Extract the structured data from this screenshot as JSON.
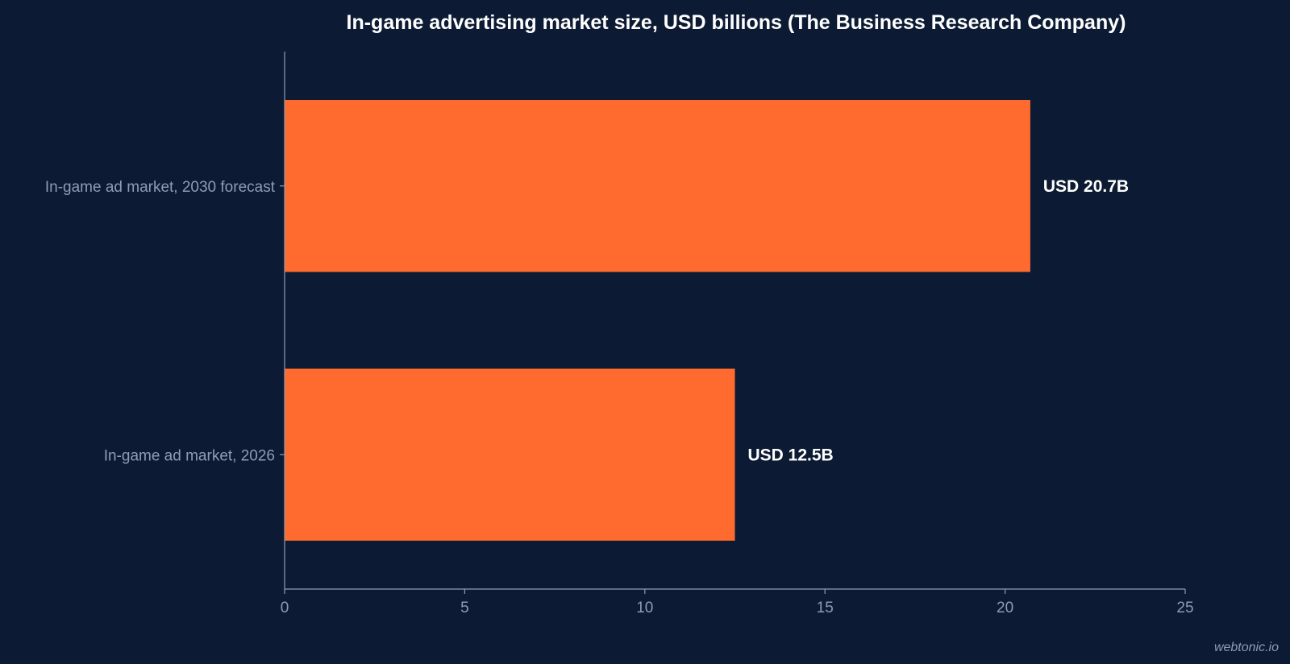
{
  "colors": {
    "background": "#0c1b33",
    "bar": "#ff6b2f",
    "axis": "#8f9bb5",
    "text": "#ffffff",
    "muted_text": "#8f9bb5"
  },
  "watermark": "webtonic.io",
  "chart_data": {
    "type": "bar",
    "orientation": "horizontal",
    "title": "In-game advertising market size, USD billions (The Business Research Company)",
    "xlabel": "",
    "ylabel": "",
    "categories": [
      "In-game ad market, 2030 forecast",
      "In-game ad market, 2026"
    ],
    "values": [
      20.7,
      12.5
    ],
    "data_labels": [
      "USD 20.7B",
      "USD 12.5B"
    ],
    "xlim": [
      0,
      25
    ],
    "xticks": [
      0,
      5,
      10,
      15,
      20,
      25
    ],
    "grid": false,
    "legend": "none"
  }
}
